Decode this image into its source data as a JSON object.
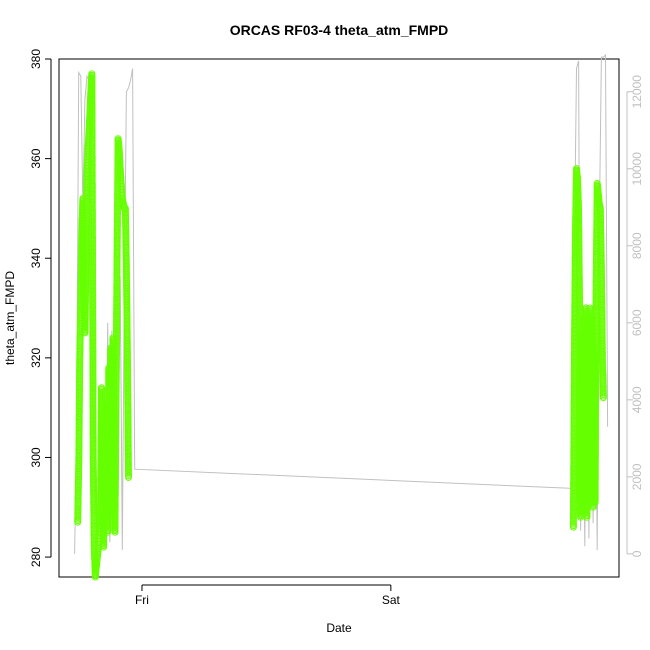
{
  "chart_data": {
    "type": "line",
    "title": "ORCAS RF03-4 theta_atm_FMPD",
    "xlabel": "Date",
    "ylabel": "theta_atm_FMPD",
    "x_ticks": [
      {
        "label": "Fri",
        "t": "Fri 00:00"
      },
      {
        "label": "Sat",
        "t": "Sat 00:00"
      }
    ],
    "y_left": {
      "range": [
        276,
        380
      ],
      "ticks": [
        280,
        300,
        320,
        340,
        360,
        380
      ]
    },
    "y_right": {
      "range": [
        -600,
        12850
      ],
      "ticks": [
        0,
        2000,
        4000,
        6000,
        8000,
        10000,
        12000
      ]
    },
    "colors": {
      "theta": "#66ff00",
      "altitude": "#c0c0c0"
    },
    "series": [
      {
        "axis": "right",
        "style": "line",
        "points": [
          [
            "Thu 17:30",
            0
          ],
          [
            "Thu 17:42",
            3000
          ],
          [
            "Thu 17:54",
            12500
          ],
          [
            "Thu 18:06",
            12400
          ],
          [
            "Thu 18:18",
            9000
          ],
          [
            "Thu 18:30",
            11800
          ],
          [
            "Thu 18:42",
            12400
          ],
          [
            "Thu 18:54",
            12300
          ],
          [
            "Thu 19:06",
            10000
          ],
          [
            "Thu 19:18",
            3500
          ],
          [
            "Thu 19:30",
            1500
          ],
          [
            "Thu 19:42",
            500
          ],
          [
            "Thu 19:54",
            2500
          ],
          [
            "Thu 20:06",
            200
          ],
          [
            "Thu 20:18",
            3000
          ],
          [
            "Thu 20:30",
            1000
          ],
          [
            "Thu 20:42",
            6000
          ],
          [
            "Thu 20:54",
            300
          ],
          [
            "Thu 21:06",
            5800
          ],
          [
            "Thu 21:18",
            2000
          ],
          [
            "Thu 21:30",
            6500
          ],
          [
            "Thu 21:42",
            1500
          ],
          [
            "Thu 21:54",
            7200
          ],
          [
            "Thu 22:06",
            100
          ],
          [
            "Thu 22:18",
            6800
          ],
          [
            "Thu 22:30",
            12000
          ],
          [
            "Thu 22:42",
            12100
          ],
          [
            "Thu 22:54",
            12300
          ],
          [
            "Thu 23:06",
            12600
          ],
          [
            "Thu 23:18",
            2200
          ],
          [
            "Sat 17:30",
            1700
          ],
          [
            "Sat 17:42",
            8000
          ],
          [
            "Sat 17:54",
            12600
          ],
          [
            "Sat 18:06",
            12800
          ],
          [
            "Sat 18:18",
            600
          ],
          [
            "Sat 18:30",
            5000
          ],
          [
            "Sat 18:42",
            200
          ],
          [
            "Sat 18:54",
            6500
          ],
          [
            "Sat 19:06",
            400
          ],
          [
            "Sat 19:18",
            6200
          ],
          [
            "Sat 19:30",
            800
          ],
          [
            "Sat 19:42",
            6800
          ],
          [
            "Sat 19:54",
            100
          ],
          [
            "Sat 20:06",
            8500
          ],
          [
            "Sat 20:18",
            12900
          ],
          [
            "Sat 20:30",
            12900
          ],
          [
            "Sat 20:42",
            12950
          ],
          [
            "Sat 20:54",
            3300
          ]
        ]
      },
      {
        "axis": "left",
        "style": "points",
        "points": [
          [
            "Thu 17:48",
            287
          ],
          [
            "Thu 17:55",
            300
          ],
          [
            "Thu 18:00",
            320
          ],
          [
            "Thu 18:06",
            330
          ],
          [
            "Thu 18:12",
            345
          ],
          [
            "Thu 18:18",
            352
          ],
          [
            "Thu 18:24",
            330
          ],
          [
            "Thu 18:30",
            325
          ],
          [
            "Thu 18:36",
            340
          ],
          [
            "Thu 18:42",
            358
          ],
          [
            "Thu 18:48",
            362
          ],
          [
            "Thu 18:54",
            366
          ],
          [
            "Thu 19:00",
            370
          ],
          [
            "Thu 19:06",
            375
          ],
          [
            "Thu 19:10",
            377
          ],
          [
            "Thu 19:14",
            340
          ],
          [
            "Thu 19:18",
            300
          ],
          [
            "Thu 19:24",
            282
          ],
          [
            "Thu 19:30",
            276
          ],
          [
            "Thu 19:36",
            278
          ],
          [
            "Thu 19:42",
            280
          ],
          [
            "Thu 19:48",
            282
          ],
          [
            "Thu 19:54",
            284
          ],
          [
            "Thu 20:00",
            286
          ],
          [
            "Thu 20:06",
            314
          ],
          [
            "Thu 20:12",
            296
          ],
          [
            "Thu 20:18",
            282
          ],
          [
            "Thu 20:24",
            310
          ],
          [
            "Thu 20:30",
            288
          ],
          [
            "Thu 20:36",
            306
          ],
          [
            "Thu 20:42",
            285
          ],
          [
            "Thu 20:48",
            318
          ],
          [
            "Thu 20:54",
            300
          ],
          [
            "Thu 21:00",
            322
          ],
          [
            "Thu 21:06",
            290
          ],
          [
            "Thu 21:12",
            324
          ],
          [
            "Thu 21:18",
            295
          ],
          [
            "Thu 21:24",
            285
          ],
          [
            "Thu 21:30",
            315
          ],
          [
            "Thu 21:36",
            340
          ],
          [
            "Thu 21:42",
            364
          ],
          [
            "Thu 21:48",
            362
          ],
          [
            "Thu 21:54",
            358
          ],
          [
            "Thu 22:00",
            355
          ],
          [
            "Thu 22:06",
            352
          ],
          [
            "Thu 22:12",
            351
          ],
          [
            "Thu 22:18",
            350
          ],
          [
            "Thu 22:24",
            350
          ],
          [
            "Thu 22:30",
            338
          ],
          [
            "Thu 22:36",
            320
          ],
          [
            "Thu 22:42",
            296
          ],
          [
            "Sat 17:36",
            286
          ],
          [
            "Sat 17:42",
            320
          ],
          [
            "Sat 17:48",
            345
          ],
          [
            "Sat 17:54",
            358
          ],
          [
            "Sat 18:00",
            356
          ],
          [
            "Sat 18:06",
            350
          ],
          [
            "Sat 18:12",
            330
          ],
          [
            "Sat 18:18",
            288
          ],
          [
            "Sat 18:24",
            325
          ],
          [
            "Sat 18:30",
            290
          ],
          [
            "Sat 18:36",
            328
          ],
          [
            "Sat 18:42",
            292
          ],
          [
            "Sat 18:48",
            330
          ],
          [
            "Sat 18:54",
            288
          ],
          [
            "Sat 19:00",
            326
          ],
          [
            "Sat 19:06",
            295
          ],
          [
            "Sat 19:12",
            330
          ],
          [
            "Sat 19:18",
            292
          ],
          [
            "Sat 19:24",
            328
          ],
          [
            "Sat 19:30",
            290
          ],
          [
            "Sat 19:36",
            322
          ],
          [
            "Sat 19:42",
            291
          ],
          [
            "Sat 19:48",
            335
          ],
          [
            "Sat 19:54",
            355
          ],
          [
            "Sat 20:00",
            353
          ],
          [
            "Sat 20:06",
            351
          ],
          [
            "Sat 20:12",
            350
          ],
          [
            "Sat 20:18",
            338
          ],
          [
            "Sat 20:24",
            320
          ],
          [
            "Sat 20:30",
            312
          ]
        ]
      }
    ]
  }
}
